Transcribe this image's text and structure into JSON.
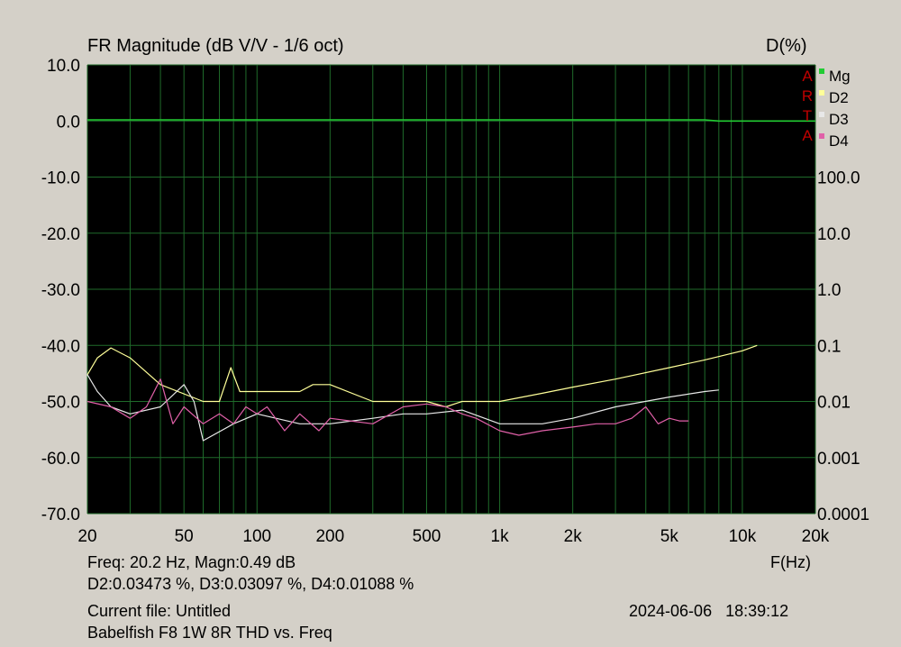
{
  "header": {
    "title": "FR Magnitude (dB V/V - 1/6 oct)",
    "right_axis_title": "D(%)"
  },
  "watermark": [
    "A",
    "R",
    "T",
    "A"
  ],
  "info": {
    "cursor_line": "Freq: 20.2 Hz, Magn:0.49 dB",
    "distortion_line": "D2:0.03473 %, D3:0.03097 %, D4:0.01088 %",
    "current_file": "Current file: Untitled",
    "description": "Babelfish F8 1W 8R THD vs. Freq",
    "timestamp": "2024-06-06   18:39:12",
    "x_unit": "F(Hz)"
  },
  "colors": {
    "background": "#d4d0c8",
    "plot_bg": "#000000",
    "grid": "#1f6b2a",
    "Mg": "#22cc33",
    "D2": "#ffff99",
    "D3": "#e8e8e8",
    "D4": "#e060a8"
  },
  "chart_data": {
    "type": "line",
    "title": "FR Magnitude (dB V/V - 1/6 oct)",
    "xlabel": "F(Hz)",
    "x_scale": "log",
    "xlim": [
      20,
      20000
    ],
    "ylim_left": [
      -70,
      10
    ],
    "ylim_right_percent": [
      0.0001,
      100
    ],
    "right_scale": "log",
    "x_ticks": [
      20,
      50,
      100,
      200,
      500,
      1000,
      2000,
      5000,
      10000,
      20000
    ],
    "x_tick_labels": [
      "20",
      "50",
      "100",
      "200",
      "500",
      "1k",
      "2k",
      "5k",
      "10k",
      "20k"
    ],
    "y_left_ticks": [
      10,
      0,
      -10,
      -20,
      -30,
      -40,
      -50,
      -60,
      -70
    ],
    "y_left_tick_labels": [
      "10.0",
      "0.0",
      "-10.0",
      "-20.0",
      "-30.0",
      "-40.0",
      "-50.0",
      "-60.0",
      "-70.0"
    ],
    "y_right_ticks": [
      100,
      10,
      1,
      0.1,
      0.01,
      0.001,
      0.0001
    ],
    "y_right_tick_labels": [
      "100.0",
      "10.0",
      "1.0",
      "0.1",
      "0.01",
      "0.001",
      "0.0001"
    ],
    "grid": true,
    "legend_position": "top-right",
    "series": [
      {
        "name": "Mg",
        "axis": "left_dB",
        "x": [
          20,
          100,
          1000,
          7000,
          8000,
          20000
        ],
        "y": [
          0.2,
          0.2,
          0.2,
          0.2,
          0.0,
          0.0
        ]
      },
      {
        "name": "D2",
        "axis": "right_percent",
        "x": [
          20,
          22,
          25,
          30,
          40,
          60,
          70,
          78,
          85,
          100,
          150,
          170,
          200,
          300,
          400,
          500,
          600,
          700,
          800,
          1000,
          1500,
          2000,
          3000,
          5000,
          7000,
          10000,
          11500
        ],
        "y": [
          0.03,
          0.06,
          0.09,
          0.06,
          0.02,
          0.01,
          0.01,
          0.04,
          0.015,
          0.015,
          0.015,
          0.02,
          0.02,
          0.01,
          0.01,
          0.01,
          0.008,
          0.01,
          0.01,
          0.01,
          0.014,
          0.018,
          0.025,
          0.04,
          0.055,
          0.08,
          0.1
        ]
      },
      {
        "name": "D3",
        "axis": "right_percent",
        "x": [
          20,
          22,
          25,
          30,
          40,
          50,
          55,
          60,
          80,
          100,
          150,
          200,
          300,
          400,
          500,
          700,
          1000,
          1500,
          2000,
          3000,
          5000,
          7000,
          8000
        ],
        "y": [
          0.03,
          0.015,
          0.008,
          0.006,
          0.008,
          0.02,
          0.01,
          0.002,
          0.004,
          0.006,
          0.004,
          0.004,
          0.005,
          0.006,
          0.006,
          0.007,
          0.004,
          0.004,
          0.005,
          0.008,
          0.012,
          0.015,
          0.016
        ]
      },
      {
        "name": "D4",
        "axis": "right_percent",
        "x": [
          20,
          25,
          30,
          35,
          40,
          45,
          50,
          60,
          70,
          80,
          90,
          100,
          110,
          130,
          150,
          180,
          200,
          300,
          400,
          500,
          600,
          700,
          800,
          1000,
          1200,
          1500,
          2000,
          2500,
          3000,
          3500,
          4000,
          4500,
          5000,
          5500,
          6000
        ],
        "y": [
          0.01,
          0.008,
          0.005,
          0.008,
          0.025,
          0.004,
          0.008,
          0.004,
          0.006,
          0.004,
          0.008,
          0.006,
          0.008,
          0.003,
          0.006,
          0.003,
          0.005,
          0.004,
          0.008,
          0.009,
          0.008,
          0.006,
          0.005,
          0.003,
          0.0025,
          0.003,
          0.0035,
          0.004,
          0.004,
          0.005,
          0.008,
          0.004,
          0.005,
          0.0045,
          0.0045
        ]
      }
    ]
  }
}
